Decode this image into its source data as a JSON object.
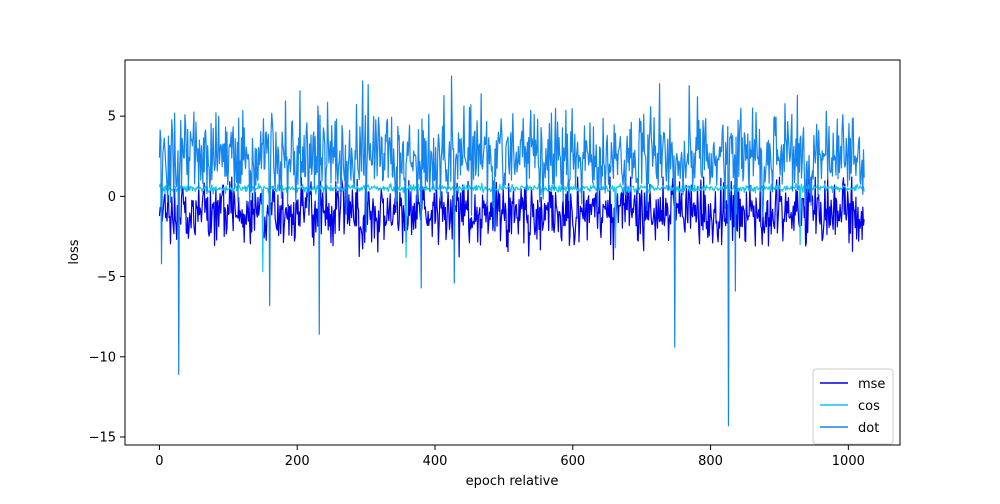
{
  "chart_data": {
    "type": "line",
    "title": "",
    "xlabel": "epoch relative",
    "ylabel": "loss",
    "xlim": [
      -50,
      1075
    ],
    "ylim": [
      -15.5,
      8.5
    ],
    "x_ticks": [
      0,
      200,
      400,
      600,
      800,
      1000
    ],
    "y_ticks": [
      -15,
      -10,
      -5,
      0,
      5
    ],
    "grid": false,
    "legend_position": "lower-right",
    "x_range": [
      0,
      1023
    ],
    "series": [
      {
        "name": "mse",
        "color": "#0000ee",
        "center": -1.0,
        "spread": 1.0,
        "min": -4.5,
        "max": 1.2,
        "spikes": []
      },
      {
        "name": "cos",
        "color": "#11c6f2",
        "center": 0.5,
        "spread": 0.12,
        "min": -3.0,
        "max": 1.0,
        "spikes": [
          [
            3,
            -2.8
          ],
          [
            150,
            -4.7
          ],
          [
            358,
            -3.8
          ],
          [
            662,
            -3.2
          ],
          [
            930,
            -3.0
          ]
        ]
      },
      {
        "name": "dot",
        "color": "#1485ee",
        "center": 2.5,
        "spread": 1.4,
        "min": -6.0,
        "max": 7.5,
        "spikes": [
          [
            3,
            -4.2
          ],
          [
            28,
            -11.1
          ],
          [
            160,
            -6.8
          ],
          [
            232,
            -8.6
          ],
          [
            380,
            -5.7
          ],
          [
            424,
            7.5
          ],
          [
            428,
            -5.4
          ],
          [
            748,
            -9.4
          ],
          [
            826,
            -14.3
          ],
          [
            836,
            -5.9
          ],
          [
            926,
            6.3
          ]
        ]
      }
    ]
  }
}
